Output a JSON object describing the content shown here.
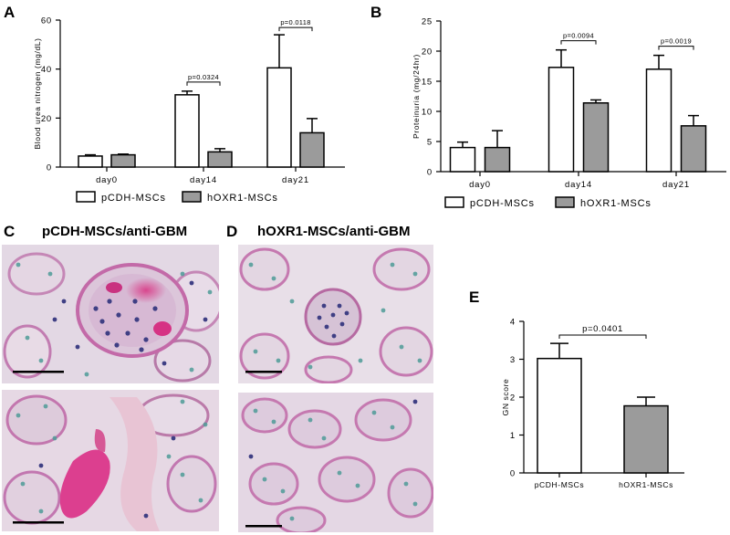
{
  "panels": {
    "A": "A",
    "B": "B",
    "C": "C",
    "D": "D",
    "E": "E",
    "C_title": "pCDH-MSCs/anti-GBM",
    "D_title": "hOXR1-MSCs/anti-GBM"
  },
  "colors": {
    "series1_fill": "#ffffff",
    "series2_fill": "#9b9b9b",
    "stroke": "#000000",
    "scale_bar": "#000000"
  },
  "chart_data": [
    {
      "id": "A",
      "type": "bar",
      "categories": [
        "day0",
        "day14",
        "day21"
      ],
      "ylabel": "Blood urea nitrogen (mg/dL)",
      "ylim": [
        0,
        60
      ],
      "yticks": [
        "0",
        "20",
        "40",
        "60"
      ],
      "yticks_values": [
        0,
        20,
        40,
        60
      ],
      "series": [
        {
          "name": "pCDH-MSCs",
          "values": [
            4.5,
            29.5,
            40.5
          ],
          "errors": [
            0.5,
            1.5,
            13.5
          ]
        },
        {
          "name": "hOXR1-MSCs",
          "values": [
            5,
            6.2,
            14
          ],
          "errors": [
            0.3,
            1.3,
            5.8
          ]
        }
      ],
      "annotations": [
        {
          "text": "p=0.0324",
          "category": 1
        },
        {
          "text": "p=0.0118",
          "category": 2
        }
      ],
      "legend_position": "bottom"
    },
    {
      "id": "B",
      "type": "bar",
      "categories": [
        "day0",
        "day14",
        "day21"
      ],
      "ylabel": "Proteinuria (mg/24hr)",
      "ylim": [
        0,
        25
      ],
      "yticks": [
        "0",
        "5",
        "10",
        "15",
        "20",
        "25"
      ],
      "yticks_values": [
        0,
        5,
        10,
        15,
        20,
        25
      ],
      "series": [
        {
          "name": "pCDH-MSCs",
          "values": [
            4,
            17.3,
            17
          ],
          "errors": [
            0.9,
            2.9,
            2.3
          ]
        },
        {
          "name": "hOXR1-MSCs",
          "values": [
            4,
            11.4,
            7.6
          ],
          "errors": [
            2.8,
            0.5,
            1.7
          ]
        }
      ],
      "annotations": [
        {
          "text": "p=0.0094",
          "category": 1
        },
        {
          "text": "p=0.0019",
          "category": 2
        }
      ],
      "legend_position": "bottom"
    },
    {
      "id": "E",
      "type": "bar",
      "categories": [
        "pCDH-MSCs",
        "hOXR1-MSCs"
      ],
      "ylabel": "GN score",
      "ylim": [
        0,
        4
      ],
      "yticks": [
        "0",
        "1",
        "2",
        "3",
        "4"
      ],
      "yticks_values": [
        0,
        1,
        2,
        3,
        4
      ],
      "values": [
        3.02,
        1.77
      ],
      "errors": [
        0.4,
        0.23
      ],
      "annotations": [
        {
          "text": "p=0.0401"
        }
      ]
    }
  ]
}
